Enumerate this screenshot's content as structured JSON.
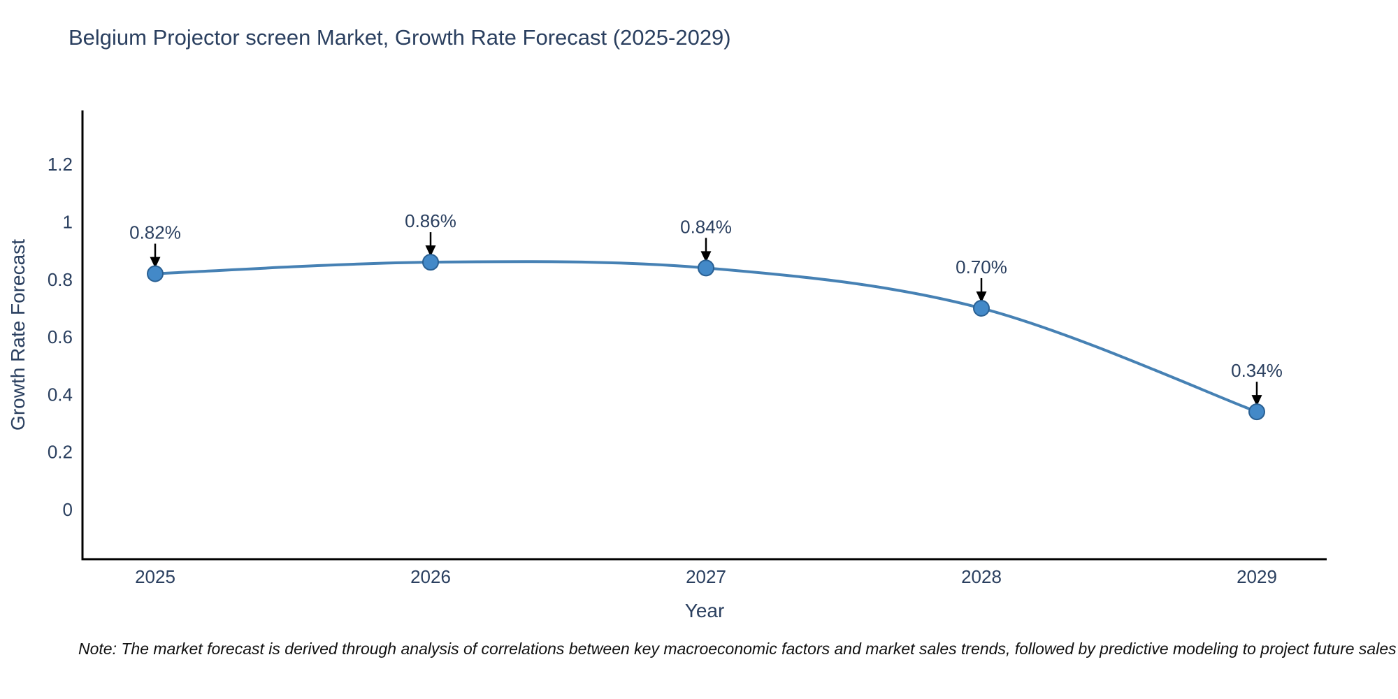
{
  "title": "Belgium Projector screen Market, Growth Rate Forecast (2025-2029)",
  "note": "Note: The market forecast is derived through analysis of correlations between key macroeconomic factors and market sales trends, followed by predictive modeling to project future sales",
  "chart_data": {
    "type": "line",
    "title": "Belgium Projector screen Market, Growth Rate Forecast (2025-2029)",
    "xlabel": "Year",
    "ylabel": "Growth Rate Forecast",
    "categories": [
      "2025",
      "2026",
      "2027",
      "2028",
      "2029"
    ],
    "values": [
      0.82,
      0.86,
      0.84,
      0.7,
      0.34
    ],
    "point_labels": [
      "0.82%",
      "0.86%",
      "0.84%",
      "0.70%",
      "0.34%"
    ],
    "yticks": [
      "1.2",
      "1",
      "0.8",
      "0.6",
      "0.4",
      "0.2",
      "0"
    ],
    "ytick_values": [
      1.2,
      1,
      0.8,
      0.6,
      0.4,
      0.2,
      0
    ],
    "ylim": [
      -0.17,
      1.39
    ],
    "grid": false,
    "legend_position": "none",
    "line_shape": "spline",
    "marker": "circle",
    "annotation_arrows": true,
    "colors": {
      "text": "#2a3f5f",
      "axis": "#000000",
      "line": "#4681b4",
      "marker_fill": "#4389c8",
      "marker_edge": "#2a6093",
      "arrow": "#000000",
      "note_text": "#111111"
    }
  }
}
